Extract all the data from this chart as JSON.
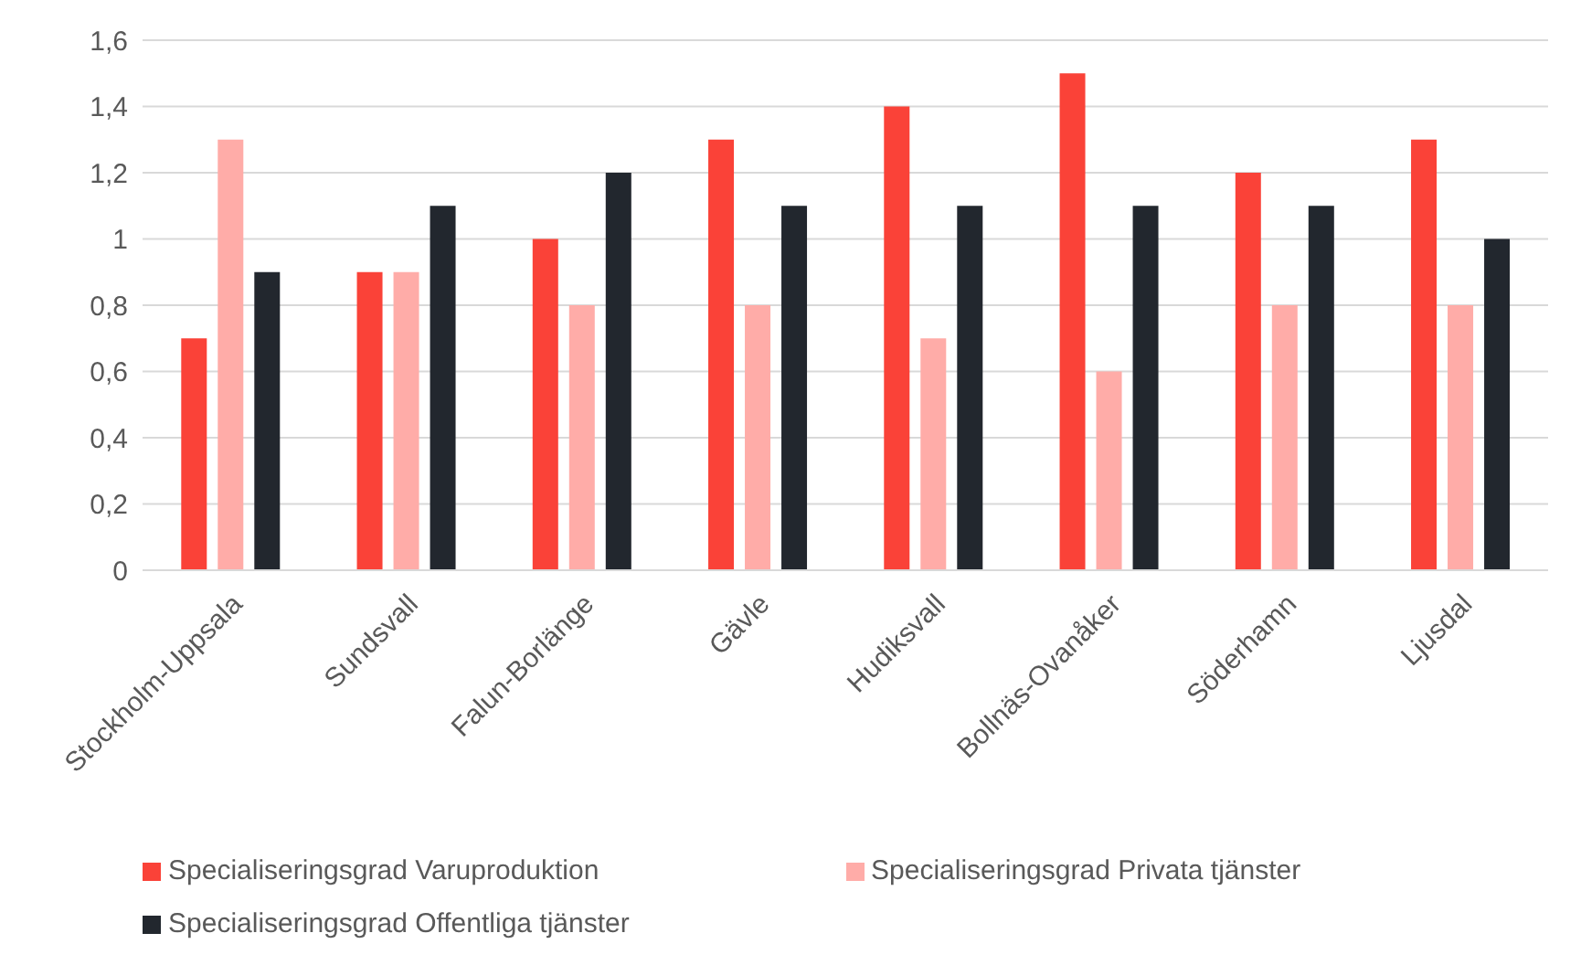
{
  "chart_data": {
    "type": "bar",
    "categories": [
      "Stockholm-Uppsala",
      "Sundsvall",
      "Falun-Borlänge",
      "Gävle",
      "Hudiksvall",
      "Bollnäs-Ovanåker",
      "Söderhamn",
      "Ljusdal"
    ],
    "series": [
      {
        "name": "Specialiseringsgrad Varuproduktion",
        "color": "#fa4238",
        "values": [
          0.7,
          0.9,
          1.0,
          1.3,
          1.4,
          1.5,
          1.2,
          1.3
        ]
      },
      {
        "name": "Specialiseringsgrad Privata tjänster",
        "color": "#ffaca8",
        "values": [
          1.3,
          0.9,
          0.8,
          0.8,
          0.7,
          0.6,
          0.8,
          0.8
        ]
      },
      {
        "name": "Specialiseringsgrad Offentliga tjänster",
        "color": "#22272e",
        "values": [
          0.9,
          1.1,
          1.2,
          1.1,
          1.1,
          1.1,
          1.1,
          1.0
        ]
      }
    ],
    "ylim": [
      0,
      1.6
    ],
    "yticks": [
      0,
      {
        "value": 0.2,
        "label": "0,2"
      },
      {
        "value": 0.4,
        "label": "0,4"
      },
      {
        "value": 0.6,
        "label": "0,6"
      },
      {
        "value": 0.8,
        "label": "0,8"
      },
      1,
      {
        "value": 1.2,
        "label": "1,2"
      },
      {
        "value": 1.4,
        "label": "1,4"
      },
      {
        "value": 1.6,
        "label": "1,6"
      }
    ],
    "grid": "y",
    "legend": "bottom"
  }
}
